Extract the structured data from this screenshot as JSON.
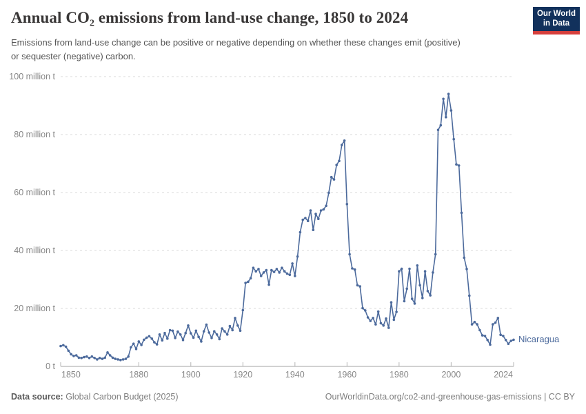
{
  "header": {
    "title": "Annual CO₂ emissions from land-use change, 1850 to 2024",
    "subtitle": "Emissions from land-use change can be positive or negative depending on whether these changes emit (positive) or sequester (negative) carbon."
  },
  "logo": {
    "line1": "Our World",
    "line2": "in Data",
    "bg_color": "#12315c",
    "accent_color": "#d63f3c"
  },
  "chart_data": {
    "type": "line",
    "title": "Annual CO₂ emissions from land-use change, 1850 to 2024",
    "xlabel": "",
    "ylabel": "",
    "unit": "million t",
    "x_start": 1850,
    "x_end": 2024,
    "ylim": [
      0,
      100
    ],
    "grid": true,
    "legend_position": "right-of-line-end",
    "xticks": [
      1850,
      1880,
      1900,
      1920,
      1940,
      1960,
      1980,
      2000,
      2024
    ],
    "yticks": [
      {
        "value": 0,
        "label": "0 t"
      },
      {
        "value": 20,
        "label": "20 million t"
      },
      {
        "value": 40,
        "label": "40 million t"
      },
      {
        "value": 60,
        "label": "60 million t"
      },
      {
        "value": 80,
        "label": "80 million t"
      },
      {
        "value": 100,
        "label": "100 million t"
      }
    ],
    "series": [
      {
        "name": "Nicaragua",
        "color": "#4C6A9C",
        "values": [
          7,
          7.3,
          6.8,
          5.4,
          4.2,
          3.6,
          3.8,
          3,
          2.9,
          3.2,
          3.4,
          2.9,
          3.4,
          2.9,
          2.4,
          2.9,
          2.6,
          3,
          4.8,
          3.8,
          3,
          2.6,
          2.4,
          2.2,
          2.4,
          2.6,
          3.4,
          6.6,
          7.8,
          6,
          8.6,
          7.4,
          9.2,
          9.9,
          10.4,
          9.6,
          8.3,
          7.6,
          11,
          9,
          11.5,
          9.6,
          12.5,
          12.3,
          9.8,
          12,
          11,
          9.1,
          11.5,
          14.1,
          11.4,
          9.9,
          12.3,
          10.2,
          8.6,
          12.1,
          14.4,
          11.7,
          9.8,
          12.1,
          11,
          9.4,
          13.1,
          12.1,
          11,
          13.9,
          12.5,
          16.7,
          14.1,
          12.3,
          19.4,
          28.8,
          29.2,
          30.4,
          34,
          32.8,
          33.6,
          31.2,
          32.4,
          33.2,
          28.2,
          33.2,
          32.6,
          33.6,
          32.4,
          34,
          32.8,
          32,
          31.6,
          35.5,
          31.2,
          37.9,
          46.3,
          50.6,
          51.2,
          50.2,
          53.8,
          47.1,
          52.6,
          50.9,
          53.8,
          54.2,
          55.4,
          59.9,
          65.3,
          64.5,
          69.5,
          70.9,
          76.4,
          77.9,
          56,
          38.7,
          33.8,
          33.4,
          28,
          27.6,
          20.1,
          19.3,
          16.9,
          15.7,
          16.7,
          14.5,
          18.9,
          14.9,
          14.1,
          16.5,
          13.3,
          22.1,
          16.1,
          18.8,
          32.8,
          33.7,
          22.5,
          26.8,
          33.7,
          23.3,
          21.7,
          34.8,
          28,
          23.6,
          32.8,
          26,
          24.5,
          32.4,
          38.7,
          81.6,
          83.2,
          92.3,
          86,
          94,
          88.3,
          78.4,
          69.7,
          69.3,
          53,
          37.5,
          33.6,
          24.4,
          14.5,
          15.3,
          14.5,
          12.5,
          10.7,
          10.5,
          9.1,
          7.5,
          14.5,
          15.1,
          16.7,
          10.9,
          10.5,
          9.1,
          7.8,
          8.8,
          9.2
        ]
      }
    ]
  },
  "footer": {
    "source_label": "Data source:",
    "source_value": " Global Carbon Budget (2025)",
    "credit": "OurWorldinData.org/co2-and-greenhouse-gas-emissions | CC BY"
  }
}
